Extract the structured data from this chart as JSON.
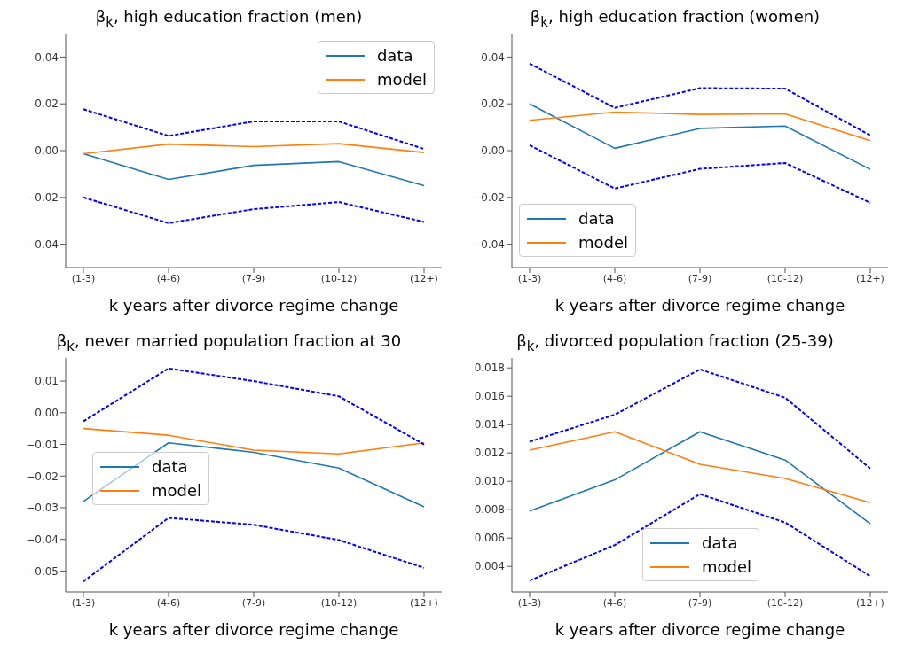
{
  "chart_data": [
    {
      "type": "line",
      "title": "β$_{k}$, high education fraction (men)",
      "xlabel": "k years after divorce regime change",
      "categories": [
        "(1-3)",
        "(4-6)",
        "(7-9)",
        "(10-12)",
        "(12+)"
      ],
      "ylim": [
        -0.05,
        0.05
      ],
      "yticks": [
        {
          "value": -0.04,
          "label": "−0.04"
        },
        {
          "value": -0.02,
          "label": "−0.02"
        },
        {
          "value": 0,
          "label": "0.00"
        },
        {
          "value": 0.02,
          "label": "0.02"
        },
        {
          "value": 0.04,
          "label": "0.04"
        }
      ],
      "legend": "top right",
      "grid": false,
      "marker": "none",
      "series": [
        {
          "name": "data",
          "color": "#1f77b4",
          "values": [
            -0.0013,
            -0.0123,
            -0.0063,
            -0.0047,
            -0.015
          ]
        },
        {
          "name": "model",
          "color": "#ff7f0e",
          "values": [
            -0.0013,
            0.0028,
            0.0017,
            0.003,
            -0.0008
          ]
        },
        {
          "color": "#0000ff",
          "line_style": "dashed",
          "values": [
            0.0177,
            0.0063,
            0.0125,
            0.0125,
            0.0007
          ]
        },
        {
          "color": "#0000ff",
          "line_style": "dashed",
          "values": [
            -0.02,
            -0.031,
            -0.025,
            -0.022,
            -0.0305
          ]
        }
      ]
    },
    {
      "type": "line",
      "title": "β$_{k}$, high education fraction (women)",
      "xlabel": "k years after divorce regime change",
      "categories": [
        "(1-3)",
        "(4-6)",
        "(7-9)",
        "(10-12)",
        "(12+)"
      ],
      "ylim": [
        -0.05,
        0.05
      ],
      "yticks": [
        {
          "value": -0.04,
          "label": "−0.04"
        },
        {
          "value": -0.02,
          "label": "−0.02"
        },
        {
          "value": 0,
          "label": "0.00"
        },
        {
          "value": 0.02,
          "label": "0.02"
        },
        {
          "value": 0.04,
          "label": "0.04"
        }
      ],
      "legend": "bottom left",
      "grid": false,
      "marker": "none",
      "series": [
        {
          "name": "data",
          "color": "#1f77b4",
          "values": [
            0.02,
            0.001,
            0.0095,
            0.0105,
            -0.008
          ]
        },
        {
          "name": "model",
          "color": "#ff7f0e",
          "values": [
            0.013,
            0.0165,
            0.0155,
            0.0157,
            0.0043
          ]
        },
        {
          "color": "#0000ff",
          "line_style": "dashed",
          "values": [
            0.0372,
            0.0183,
            0.0267,
            0.0265,
            0.0065
          ]
        },
        {
          "color": "#0000ff",
          "line_style": "dashed",
          "values": [
            0.0023,
            -0.0162,
            -0.0078,
            -0.0053,
            -0.0223
          ]
        }
      ]
    },
    {
      "type": "line",
      "title": "β$_{k}$, never married population fraction at 30",
      "xlabel": "k years after divorce regime change",
      "categories": [
        "(1-3)",
        "(4-6)",
        "(7-9)",
        "(10-12)",
        "(12+)"
      ],
      "ylim": [
        -0.0566,
        0.0173
      ],
      "yticks": [
        {
          "value": -0.05,
          "label": "−0.05"
        },
        {
          "value": -0.04,
          "label": "−0.04"
        },
        {
          "value": -0.03,
          "label": "−0.03"
        },
        {
          "value": -0.02,
          "label": "−0.02"
        },
        {
          "value": -0.01,
          "label": "−0.01"
        },
        {
          "value": 0,
          "label": "0.00"
        },
        0.01
      ],
      "legend": "left",
      "grid": false,
      "marker": "none",
      "series": [
        {
          "name": "data",
          "color": "#1f77b4",
          "values": [
            -0.028,
            -0.0095,
            -0.0125,
            -0.0175,
            -0.0297
          ]
        },
        {
          "name": "model",
          "color": "#ff7f0e",
          "values": [
            -0.005,
            -0.0071,
            -0.0118,
            -0.013,
            -0.0095
          ]
        },
        {
          "color": "#0000ff",
          "line_style": "dashed",
          "values": [
            -0.0027,
            0.014,
            0.01,
            0.0052,
            -0.01
          ]
        },
        {
          "color": "#0000ff",
          "line_style": "dashed",
          "values": [
            -0.0533,
            -0.0332,
            -0.0354,
            -0.0402,
            -0.049
          ]
        }
      ]
    },
    {
      "type": "line",
      "title": "β$_{k}$, divorced population fraction (25-39)",
      "xlabel": "k years after divorce regime change",
      "categories": [
        "(1-3)",
        "(4-6)",
        "(7-9)",
        "(10-12)",
        "(12+)"
      ],
      "ylim": [
        0.0022,
        0.0187
      ],
      "yticks": [
        0.004,
        0.006,
        0.008,
        {
          "value": 0.01,
          "label": "0.010"
        },
        0.012,
        0.014,
        0.016,
        0.018
      ],
      "legend": "bottom",
      "grid": false,
      "marker": "none",
      "series": [
        {
          "name": "data",
          "color": "#1f77b4",
          "values": [
            0.0079,
            0.0101,
            0.0135,
            0.0115,
            0.007
          ]
        },
        {
          "name": "model",
          "color": "#ff7f0e",
          "values": [
            0.0122,
            0.0135,
            0.0112,
            0.0102,
            0.0085
          ]
        },
        {
          "color": "#0000ff",
          "line_style": "dashed",
          "values": [
            0.0128,
            0.0147,
            0.0179,
            0.0159,
            0.0109
          ]
        },
        {
          "color": "#0000ff",
          "line_style": "dashed",
          "values": [
            0.003,
            0.0055,
            0.0091,
            0.0071,
            0.0033
          ]
        }
      ]
    }
  ]
}
